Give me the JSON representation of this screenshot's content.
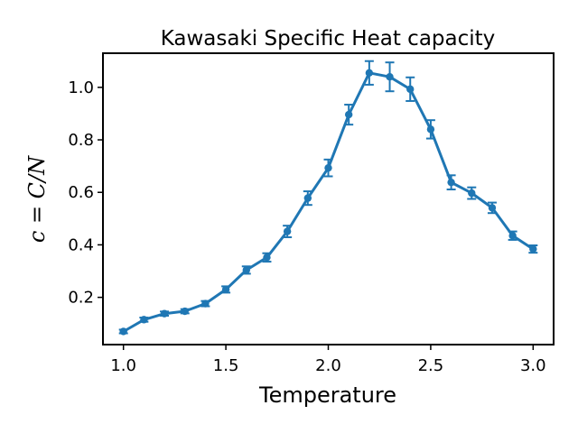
{
  "chart_data": {
    "type": "line",
    "title": "Kawasaki Specific Heat capacity",
    "xlabel": "Temperature",
    "ylabel": "c = C/N",
    "xlim": [
      0.9,
      3.1
    ],
    "ylim": [
      0.02,
      1.13
    ],
    "x_ticks": [
      1.0,
      1.5,
      2.0,
      2.5,
      3.0
    ],
    "x_tick_labels": [
      "1.0",
      "1.5",
      "2.0",
      "2.5",
      "3.0"
    ],
    "y_ticks": [
      0.2,
      0.4,
      0.6,
      0.8,
      1.0
    ],
    "y_tick_labels": [
      "0.2",
      "0.4",
      "0.6",
      "0.8",
      "1.0"
    ],
    "grid": false,
    "series": [
      {
        "color": "#1f77b4",
        "x": [
          1.0,
          1.1,
          1.2,
          1.3,
          1.4,
          1.5,
          1.6,
          1.7,
          1.8,
          1.9,
          2.0,
          2.1,
          2.2,
          2.3,
          2.4,
          2.5,
          2.6,
          2.7,
          2.8,
          2.9,
          3.0
        ],
        "y": [
          0.07,
          0.115,
          0.138,
          0.147,
          0.176,
          0.23,
          0.304,
          0.352,
          0.451,
          0.578,
          0.693,
          0.896,
          1.055,
          1.04,
          0.993,
          0.84,
          0.638,
          0.597,
          0.541,
          0.435,
          0.384
        ],
        "yerr": [
          0.007,
          0.008,
          0.008,
          0.008,
          0.01,
          0.012,
          0.014,
          0.016,
          0.022,
          0.026,
          0.032,
          0.038,
          0.045,
          0.055,
          0.045,
          0.035,
          0.027,
          0.022,
          0.02,
          0.016,
          0.014
        ]
      }
    ]
  }
}
